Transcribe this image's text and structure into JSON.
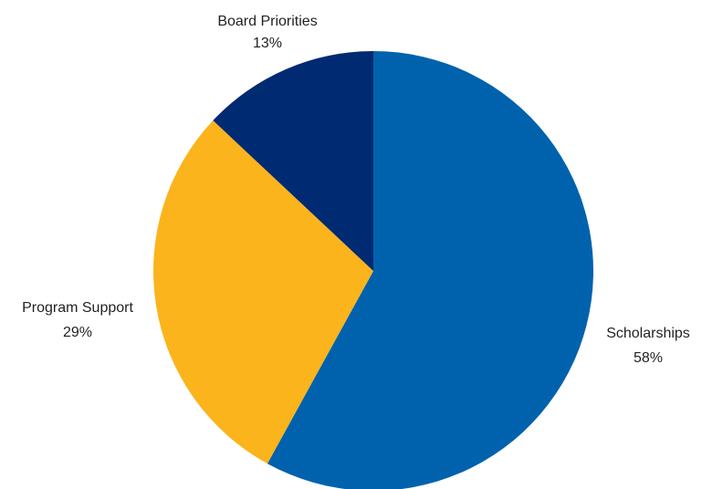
{
  "chart_data": {
    "type": "pie",
    "title": "",
    "start": "12 o'clock",
    "direction": "clockwise",
    "legend": "none",
    "slices": [
      {
        "name": "Scholarships",
        "value": 58,
        "label": "58%",
        "color": "#0062ad"
      },
      {
        "name": "Program Support",
        "value": 29,
        "label": "29%",
        "color": "#fbb41c"
      },
      {
        "name": "Board Priorities",
        "value": 13,
        "label": "13%",
        "color": "#002a72"
      }
    ]
  }
}
